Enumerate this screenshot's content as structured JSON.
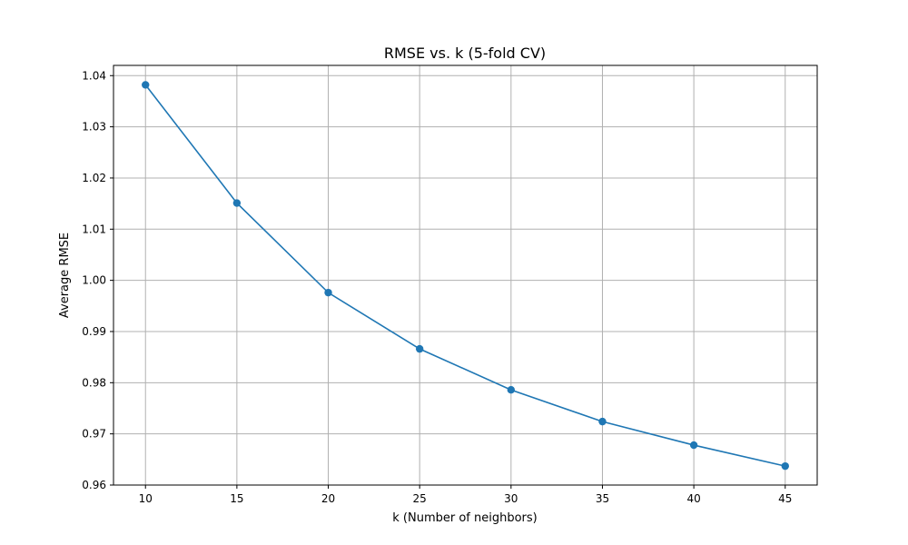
{
  "chart_data": {
    "type": "line",
    "title": "RMSE vs. k (5-fold CV)",
    "xlabel": "k (Number of neighbors)",
    "ylabel": "Average RMSE",
    "x": [
      10,
      15,
      20,
      25,
      30,
      35,
      40,
      45
    ],
    "series": [
      {
        "values": [
          1.0382,
          1.0151,
          0.9976,
          0.9866,
          0.9786,
          0.9724,
          0.9678,
          0.9637
        ],
        "color": "#1f77b4",
        "marker": "circle"
      }
    ],
    "xlim": [
      8.25,
      46.75
    ],
    "ylim": [
      0.96,
      1.042
    ],
    "xticks": [
      10,
      15,
      20,
      25,
      30,
      35,
      40,
      45
    ],
    "yticks": [
      0.96,
      0.97,
      0.98,
      0.99,
      1.0,
      1.01,
      1.02,
      1.03,
      1.04
    ],
    "ytick_labels": [
      "0.96",
      "0.97",
      "0.98",
      "0.99",
      "1.00",
      "1.01",
      "1.02",
      "1.03",
      "1.04"
    ],
    "grid": true,
    "legend": "none"
  }
}
